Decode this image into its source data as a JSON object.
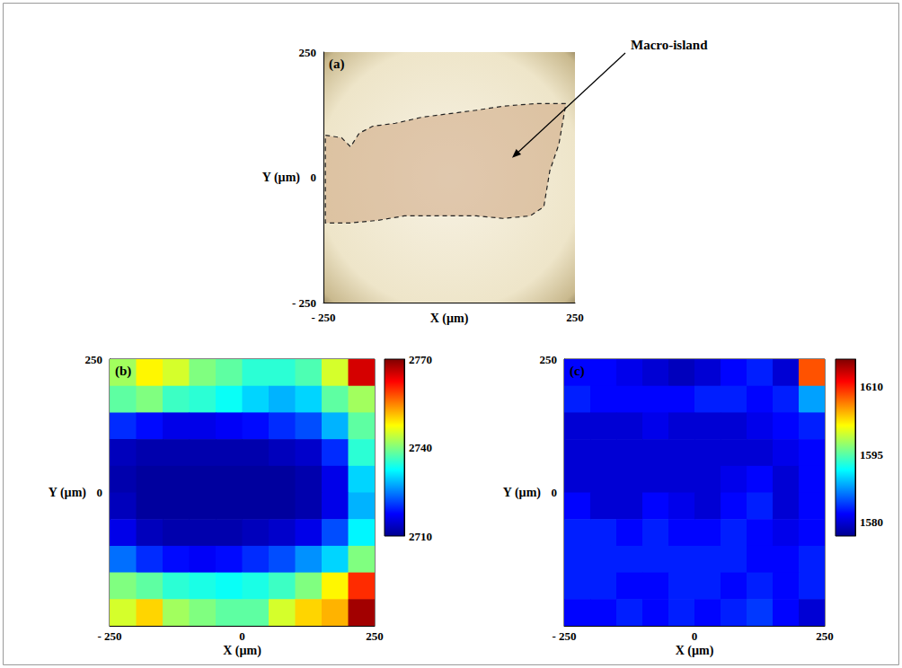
{
  "chart_data": [
    {
      "type": "image",
      "title": "(a)",
      "xlabel": "X (µm)",
      "ylabel": "Y (µm)",
      "xlim": [
        -250,
        250
      ],
      "ylim": [
        -250,
        250
      ],
      "xticks": [
        {
          "value": -250,
          "label": "- 250"
        },
        250
      ],
      "yticks": [
        {
          "value": -250,
          "label": "- 250"
        },
        0,
        250
      ],
      "grid": false,
      "outline": {
        "x": [
          -246,
          -214,
          -196,
          -179,
          -152,
          -107,
          -54,
          0,
          54,
          107,
          171,
          232,
          218,
          200,
          188,
          161,
          107,
          54,
          -9,
          -89,
          -143,
          -196,
          -246
        ],
        "y": [
          84,
          79,
          61,
          88,
          102,
          108,
          120,
          127,
          134,
          142,
          147,
          147,
          66,
          13,
          -59,
          -77,
          -82,
          -77,
          -77,
          -77,
          -86,
          -91,
          -91
        ]
      },
      "annotation": {
        "text": "Macro-island",
        "xy": [
          125,
          39
        ]
      }
    },
    {
      "type": "heatmap",
      "title": "(b)",
      "xlabel": "X (µm)",
      "ylabel": "Y (µm)",
      "xlim": [
        -250,
        250
      ],
      "ylim": [
        -250,
        250
      ],
      "xticks": [
        {
          "value": -250,
          "label": "- 250"
        },
        0,
        250
      ],
      "yticks": [
        0,
        250
      ],
      "grid": false,
      "cells": {
        "x": [
          -225,
          -175,
          -125,
          -75,
          -25,
          25,
          75,
          125,
          175,
          225
        ],
        "y": [
          225,
          175,
          125,
          75,
          25,
          -25,
          -75,
          -125,
          -175,
          -225
        ],
        "values": [
          [
            2742,
            2748,
            2745,
            2740,
            2738,
            2735,
            2735,
            2737,
            2745,
            2765
          ],
          [
            2738,
            2740,
            2736,
            2735,
            2733,
            2730,
            2728,
            2730,
            2738,
            2742
          ],
          [
            2720,
            2718,
            2716,
            2716,
            2717,
            2718,
            2720,
            2722,
            2728,
            2738
          ],
          [
            2713,
            2712,
            2712,
            2712,
            2712,
            2712,
            2713,
            2714,
            2720,
            2735
          ],
          [
            2712,
            2711,
            2711,
            2711,
            2711,
            2711,
            2711,
            2712,
            2716,
            2730
          ],
          [
            2713,
            2711,
            2711,
            2711,
            2711,
            2711,
            2711,
            2712,
            2716,
            2728
          ],
          [
            2716,
            2713,
            2712,
            2712,
            2712,
            2713,
            2714,
            2716,
            2722,
            2732
          ],
          [
            2724,
            2720,
            2718,
            2717,
            2718,
            2720,
            2722,
            2726,
            2730,
            2740
          ],
          [
            2740,
            2738,
            2735,
            2734,
            2733,
            2734,
            2736,
            2740,
            2748,
            2760
          ],
          [
            2745,
            2750,
            2742,
            2740,
            2738,
            2738,
            2745,
            2750,
            2752,
            2768
          ]
        ]
      },
      "colorbar": {
        "range": [
          2710,
          2770
        ],
        "ticks": [
          2710,
          2740,
          2770
        ]
      }
    },
    {
      "type": "heatmap",
      "title": "(c)",
      "xlabel": "X (µm)",
      "ylabel": "Y (µm)",
      "xlim": [
        -250,
        250
      ],
      "ylim": [
        -250,
        250
      ],
      "xticks": [
        {
          "value": -250,
          "label": "- 250"
        },
        0,
        250
      ],
      "yticks": [
        0,
        250
      ],
      "grid": false,
      "cells": {
        "x": [
          -225,
          -175,
          -125,
          -75,
          -25,
          25,
          75,
          125,
          175,
          225
        ],
        "y": [
          225,
          175,
          125,
          75,
          25,
          -25,
          -75,
          -125,
          -175,
          -225
        ],
        "values": [
          [
            1582,
            1582,
            1581,
            1580,
            1579,
            1580,
            1582,
            1583,
            1580,
            1608
          ],
          [
            1583,
            1582,
            1582,
            1582,
            1582,
            1583,
            1583,
            1582,
            1583,
            1588
          ],
          [
            1580,
            1580,
            1580,
            1581,
            1580,
            1580,
            1580,
            1581,
            1582,
            1583
          ],
          [
            1580,
            1580,
            1580,
            1580,
            1580,
            1580,
            1580,
            1580,
            1581,
            1582
          ],
          [
            1580,
            1580,
            1580,
            1580,
            1580,
            1580,
            1581,
            1582,
            1580,
            1582
          ],
          [
            1582,
            1580,
            1580,
            1582,
            1581,
            1580,
            1582,
            1583,
            1580,
            1582
          ],
          [
            1583,
            1583,
            1582,
            1583,
            1582,
            1582,
            1583,
            1582,
            1581,
            1582
          ],
          [
            1583,
            1583,
            1583,
            1583,
            1583,
            1583,
            1583,
            1582,
            1582,
            1583
          ],
          [
            1583,
            1583,
            1582,
            1582,
            1583,
            1583,
            1582,
            1583,
            1582,
            1583
          ],
          [
            1582,
            1582,
            1583,
            1582,
            1583,
            1582,
            1583,
            1584,
            1582,
            1580
          ]
        ]
      },
      "colorbar": {
        "range": [
          1577,
          1616
        ],
        "ticks": [
          1580,
          1595,
          1610
        ]
      }
    }
  ]
}
